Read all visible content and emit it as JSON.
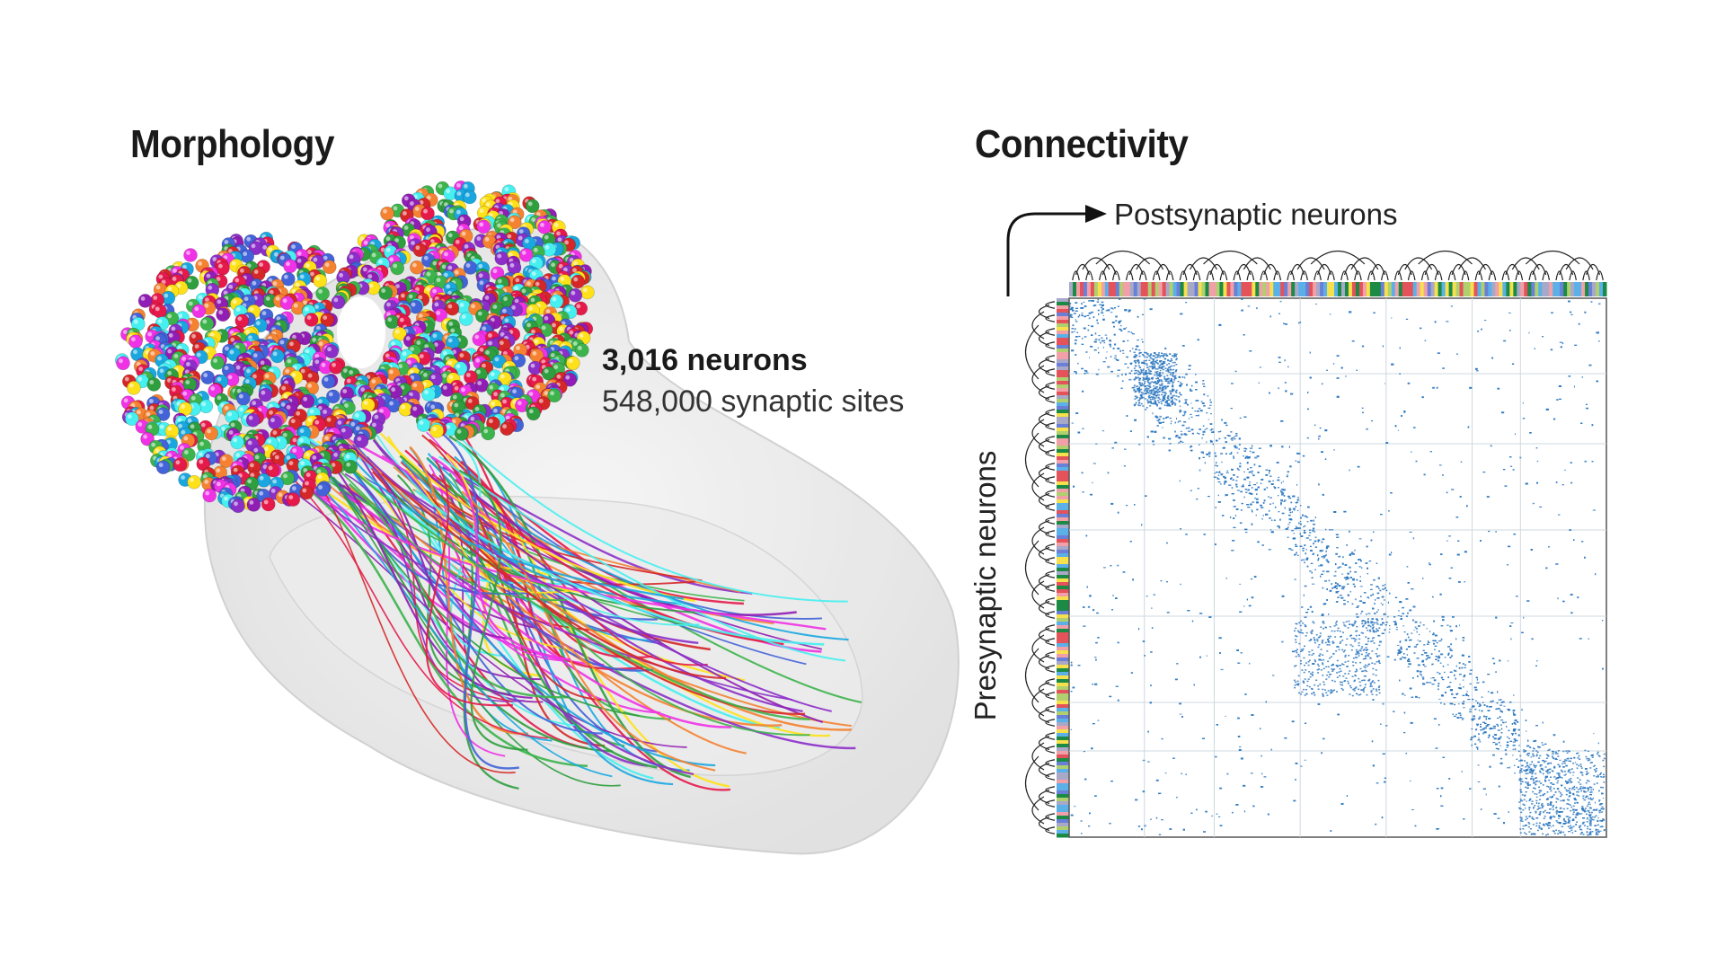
{
  "morphology": {
    "title": "Morphology",
    "neurons_label": "3,016 neurons",
    "synapses_label": "548,000 synaptic sites",
    "palette": [
      "#e6194b",
      "#3cb44b",
      "#ffe119",
      "#4363d8",
      "#f58231",
      "#911eb4",
      "#46f0f0",
      "#f032e6",
      "#2e9e3e",
      "#1aa7e0",
      "#d62728",
      "#8c2fc9"
    ]
  },
  "connectivity": {
    "title": "Connectivity",
    "postsynaptic_label": "Postsynaptic neurons",
    "presynaptic_label": "Presynaptic neurons",
    "matrix_color": "#2e78c0",
    "cluster_colors": [
      "#1b8a45",
      "#e4525a",
      "#5bb0e8",
      "#a8a8c8",
      "#f2a0a8",
      "#6a7fd8",
      "#f6e04c",
      "#b0d070"
    ]
  }
}
